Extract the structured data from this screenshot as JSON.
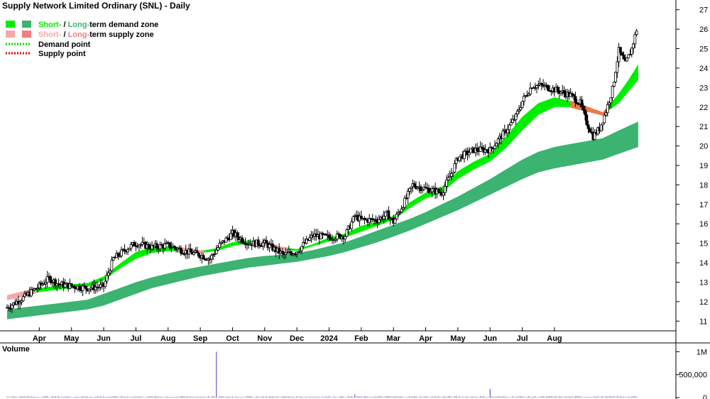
{
  "chart_data": {
    "type": "candlestick",
    "title": "Supply Network Limited Ordinary (SNL) - Daily",
    "price_axis": {
      "ticks": [
        11,
        12,
        13,
        14,
        15,
        16,
        17,
        18,
        19,
        20,
        21,
        22,
        23,
        24,
        25,
        26,
        27
      ],
      "ylim": [
        10.5,
        27.5
      ]
    },
    "x_labels": [
      "Apr",
      "May",
      "Jun",
      "Jul",
      "Aug",
      "Sep",
      "Oct",
      "Nov",
      "Dec",
      "2024",
      "Feb",
      "Mar",
      "Apr",
      "May",
      "Jun",
      "Jul",
      "Aug"
    ],
    "legend": [
      {
        "short": "Short-",
        "sep": " / ",
        "long": "Long-",
        "rest": "term demand zone",
        "short_color": "#00ee00",
        "long_color": "#3cb371"
      },
      {
        "short": "Short-",
        "sep": " / ",
        "long": "Long-",
        "rest": "term supply zone",
        "short_color": "#f4a9a9",
        "long_color": "#f08080"
      },
      {
        "label": "Demand point",
        "color": "#00dd00"
      },
      {
        "label": "Supply point",
        "color": "#dd0000"
      }
    ],
    "price_series": [
      {
        "m": 0,
        "c": 11.7
      },
      {
        "m": 0.5,
        "c": 12.2
      },
      {
        "m": 1,
        "c": 12.8
      },
      {
        "m": 1.3,
        "c": 13.2
      },
      {
        "m": 1.6,
        "c": 12.9
      },
      {
        "m": 2,
        "c": 12.8
      },
      {
        "m": 2.5,
        "c": 12.7
      },
      {
        "m": 3,
        "c": 12.8
      },
      {
        "m": 3.3,
        "c": 14.2
      },
      {
        "m": 3.7,
        "c": 14.7
      },
      {
        "m": 4,
        "c": 15.0
      },
      {
        "m": 4.5,
        "c": 14.8
      },
      {
        "m": 5,
        "c": 14.9
      },
      {
        "m": 5.5,
        "c": 14.6
      },
      {
        "m": 6,
        "c": 14.4
      },
      {
        "m": 6.3,
        "c": 14.2
      },
      {
        "m": 6.6,
        "c": 14.9
      },
      {
        "m": 7,
        "c": 15.5
      },
      {
        "m": 7.5,
        "c": 15.0
      },
      {
        "m": 8,
        "c": 15.0
      },
      {
        "m": 8.3,
        "c": 14.7
      },
      {
        "m": 8.6,
        "c": 14.4
      },
      {
        "m": 9,
        "c": 14.6
      },
      {
        "m": 9.5,
        "c": 15.4
      },
      {
        "m": 10,
        "c": 15.3
      },
      {
        "m": 10.5,
        "c": 15.4
      },
      {
        "m": 10.8,
        "c": 16.4
      },
      {
        "m": 11,
        "c": 16.2
      },
      {
        "m": 11.5,
        "c": 16.2
      },
      {
        "m": 11.8,
        "c": 16.5
      },
      {
        "m": 12,
        "c": 16.1
      },
      {
        "m": 12.3,
        "c": 17.0
      },
      {
        "m": 12.6,
        "c": 18.0
      },
      {
        "m": 13,
        "c": 17.8
      },
      {
        "m": 13.5,
        "c": 17.6
      },
      {
        "m": 13.8,
        "c": 18.6
      },
      {
        "m": 14,
        "c": 19.4
      },
      {
        "m": 14.5,
        "c": 19.8
      },
      {
        "m": 15,
        "c": 19.8
      },
      {
        "m": 15.5,
        "c": 20.8
      },
      {
        "m": 15.8,
        "c": 21.5
      },
      {
        "m": 16,
        "c": 22.3
      },
      {
        "m": 16.3,
        "c": 23.1
      },
      {
        "m": 16.6,
        "c": 23.1
      },
      {
        "m": 17,
        "c": 22.9
      },
      {
        "m": 17.5,
        "c": 22.6
      },
      {
        "m": 17.8,
        "c": 22.2
      },
      {
        "m": 18,
        "c": 21.2
      },
      {
        "m": 18.2,
        "c": 20.5
      },
      {
        "m": 18.4,
        "c": 20.9
      },
      {
        "m": 18.6,
        "c": 21.8
      },
      {
        "m": 18.8,
        "c": 22.9
      },
      {
        "m": 19,
        "c": 24.9
      },
      {
        "m": 19.2,
        "c": 24.2
      },
      {
        "m": 19.4,
        "c": 25.0
      },
      {
        "m": 19.6,
        "c": 26.3
      }
    ],
    "short_term_zone": [
      {
        "m": 0,
        "lo": 12.1,
        "hi": 12.3
      },
      {
        "m": 1,
        "lo": 12.5,
        "hi": 12.7
      },
      {
        "m": 2,
        "lo": 12.7,
        "hi": 12.9
      },
      {
        "m": 2.5,
        "lo": 12.75,
        "hi": 12.95
      },
      {
        "m": 3,
        "lo": 13.1,
        "hi": 13.3
      },
      {
        "m": 3.5,
        "lo": 13.7,
        "hi": 13.95
      },
      {
        "m": 4,
        "lo": 14.2,
        "hi": 14.55
      },
      {
        "m": 4.5,
        "lo": 14.5,
        "hi": 14.8
      },
      {
        "m": 5,
        "lo": 14.6,
        "hi": 14.85
      },
      {
        "m": 5.5,
        "lo": 14.6,
        "hi": 14.75
      },
      {
        "m": 6,
        "lo": 14.5,
        "hi": 14.6
      },
      {
        "m": 6.5,
        "lo": 14.6,
        "hi": 14.75
      },
      {
        "m": 7,
        "lo": 14.85,
        "hi": 15.05
      },
      {
        "m": 7.5,
        "lo": 15.0,
        "hi": 15.15
      },
      {
        "m": 8,
        "lo": 14.95,
        "hi": 15.05
      },
      {
        "m": 8.5,
        "lo": 14.7,
        "hi": 14.8
      },
      {
        "m": 9,
        "lo": 14.6,
        "hi": 14.7
      },
      {
        "m": 9.5,
        "lo": 14.85,
        "hi": 14.95
      },
      {
        "m": 10,
        "lo": 15.1,
        "hi": 15.3
      },
      {
        "m": 10.5,
        "lo": 15.3,
        "hi": 15.5
      },
      {
        "m": 11,
        "lo": 15.6,
        "hi": 15.9
      },
      {
        "m": 11.5,
        "lo": 15.9,
        "hi": 16.1
      },
      {
        "m": 12,
        "lo": 16.2,
        "hi": 16.4
      },
      {
        "m": 12.5,
        "lo": 16.8,
        "hi": 17.1
      },
      {
        "m": 13,
        "lo": 17.3,
        "hi": 17.6
      },
      {
        "m": 13.5,
        "lo": 17.6,
        "hi": 17.9
      },
      {
        "m": 14,
        "lo": 18.3,
        "hi": 18.7
      },
      {
        "m": 14.5,
        "lo": 18.8,
        "hi": 19.2
      },
      {
        "m": 15,
        "lo": 19.2,
        "hi": 19.6
      },
      {
        "m": 15.5,
        "lo": 19.9,
        "hi": 20.5
      },
      {
        "m": 16,
        "lo": 20.8,
        "hi": 21.5
      },
      {
        "m": 16.5,
        "lo": 21.6,
        "hi": 22.2
      },
      {
        "m": 17,
        "lo": 22.0,
        "hi": 22.5
      },
      {
        "m": 17.5,
        "lo": 22.0,
        "hi": 22.3
      },
      {
        "m": 18,
        "lo": 21.8,
        "hi": 22.0
      },
      {
        "m": 18.5,
        "lo": 21.6,
        "hi": 21.7
      },
      {
        "m": 19,
        "lo": 22.2,
        "hi": 22.7
      },
      {
        "m": 19.3,
        "lo": 22.8,
        "hi": 23.4
      },
      {
        "m": 19.6,
        "lo": 23.4,
        "hi": 24.2
      }
    ],
    "long_term_zone": [
      {
        "m": 0,
        "lo": 11.1,
        "hi": 11.6
      },
      {
        "m": 1,
        "lo": 11.3,
        "hi": 11.8
      },
      {
        "m": 2,
        "lo": 11.5,
        "hi": 12.0
      },
      {
        "m": 2.5,
        "lo": 11.6,
        "hi": 12.1
      },
      {
        "m": 3,
        "lo": 11.8,
        "hi": 12.4
      },
      {
        "m": 3.5,
        "lo": 12.1,
        "hi": 12.7
      },
      {
        "m": 4,
        "lo": 12.4,
        "hi": 13.0
      },
      {
        "m": 4.5,
        "lo": 12.7,
        "hi": 13.25
      },
      {
        "m": 5,
        "lo": 12.9,
        "hi": 13.45
      },
      {
        "m": 5.5,
        "lo": 13.1,
        "hi": 13.65
      },
      {
        "m": 6,
        "lo": 13.3,
        "hi": 13.8
      },
      {
        "m": 6.5,
        "lo": 13.45,
        "hi": 13.95
      },
      {
        "m": 7,
        "lo": 13.6,
        "hi": 14.1
      },
      {
        "m": 7.5,
        "lo": 13.75,
        "hi": 14.25
      },
      {
        "m": 8,
        "lo": 13.85,
        "hi": 14.35
      },
      {
        "m": 8.5,
        "lo": 13.95,
        "hi": 14.4
      },
      {
        "m": 9,
        "lo": 14.05,
        "hi": 14.5
      },
      {
        "m": 9.5,
        "lo": 14.2,
        "hi": 14.65
      },
      {
        "m": 10,
        "lo": 14.35,
        "hi": 14.85
      },
      {
        "m": 10.5,
        "lo": 14.55,
        "hi": 15.05
      },
      {
        "m": 11,
        "lo": 14.8,
        "hi": 15.35
      },
      {
        "m": 11.5,
        "lo": 15.05,
        "hi": 15.65
      },
      {
        "m": 12,
        "lo": 15.35,
        "hi": 15.95
      },
      {
        "m": 12.5,
        "lo": 15.65,
        "hi": 16.25
      },
      {
        "m": 13,
        "lo": 16.0,
        "hi": 16.6
      },
      {
        "m": 13.5,
        "lo": 16.35,
        "hi": 17.0
      },
      {
        "m": 14,
        "lo": 16.7,
        "hi": 17.4
      },
      {
        "m": 14.5,
        "lo": 17.1,
        "hi": 17.85
      },
      {
        "m": 15,
        "lo": 17.5,
        "hi": 18.3
      },
      {
        "m": 15.5,
        "lo": 17.9,
        "hi": 18.8
      },
      {
        "m": 16,
        "lo": 18.3,
        "hi": 19.3
      },
      {
        "m": 16.5,
        "lo": 18.65,
        "hi": 19.7
      },
      {
        "m": 17,
        "lo": 18.85,
        "hi": 19.95
      },
      {
        "m": 17.5,
        "lo": 19.0,
        "hi": 20.1
      },
      {
        "m": 18,
        "lo": 19.15,
        "hi": 20.25
      },
      {
        "m": 18.5,
        "lo": 19.3,
        "hi": 20.4
      },
      {
        "m": 19,
        "lo": 19.6,
        "hi": 20.8
      },
      {
        "m": 19.6,
        "lo": 19.95,
        "hi": 21.25
      }
    ],
    "volume": {
      "label": "Volume",
      "ticks": [
        {
          "v": 0,
          "label": "0"
        },
        {
          "v": 500000,
          "label": "500,000"
        },
        {
          "v": 1000000,
          "label": "1M"
        }
      ],
      "ylim": [
        0,
        1100000
      ],
      "spikes": [
        {
          "m": 6.5,
          "v": 1000000
        },
        {
          "m": 15.0,
          "v": 190000
        },
        {
          "m": 10.8,
          "v": 70000
        }
      ]
    }
  }
}
